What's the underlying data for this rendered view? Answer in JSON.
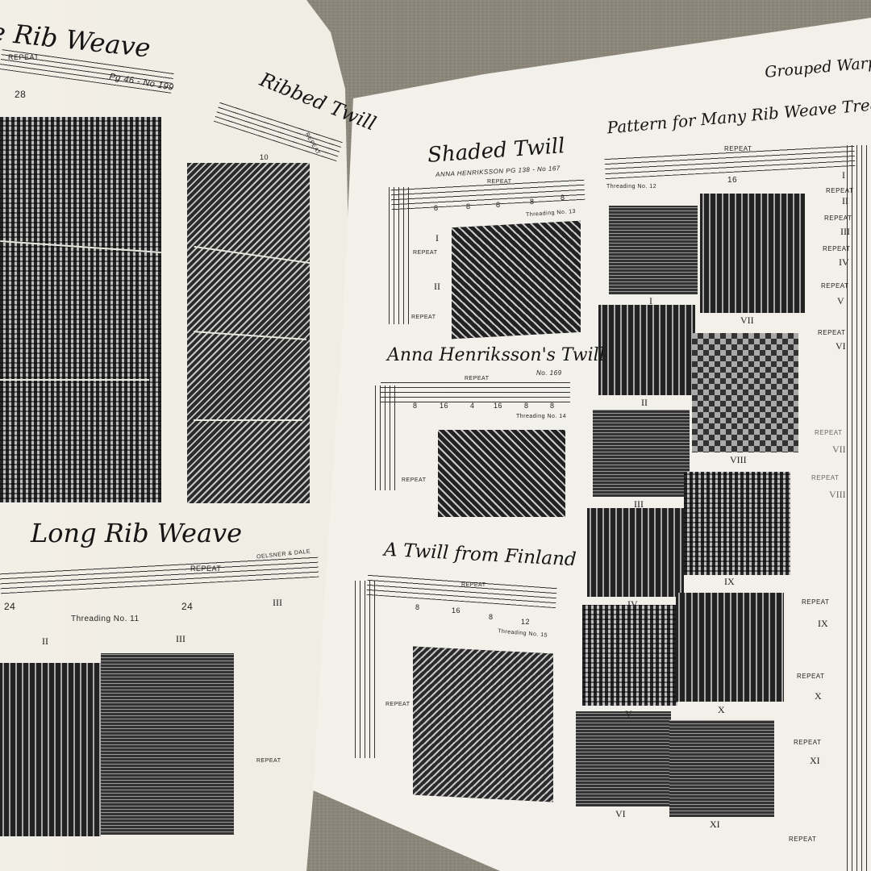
{
  "left_page": {
    "title_top": "e Rib Weave",
    "top_repeat": "REPEAT",
    "top_ref": "Pg 46 - No 199",
    "top_count": "28",
    "ribbed_title": "Ribbed Twill",
    "ribbed_count": "10",
    "ribbed_repeat": "REPEAT",
    "long_title": "Long Rib Weave",
    "long_ref": "OELSNER & DALE",
    "long_repeat": "REPEAT",
    "long_counts": [
      "24",
      "24"
    ],
    "long_threading": "Threading No. 11",
    "long_labels": [
      "II",
      "III",
      "III"
    ],
    "side_repeat": "REPEAT"
  },
  "right_page": {
    "header": "Grouped Warp T",
    "shaded": {
      "title": "Shaded Twill",
      "ref": "ANNA HENRIKSSON PG 138 - No 167",
      "repeat": "REPEAT",
      "counts": [
        "8",
        "8",
        "8",
        "8",
        "8"
      ],
      "threading": "Threading No. 13",
      "labels": [
        "I",
        "II"
      ],
      "side_repeat": [
        "REPEAT",
        "REPEAT"
      ]
    },
    "anna": {
      "title": "Anna Henriksson's Twill",
      "ref": "No. 169",
      "repeat": "REPEAT",
      "counts": [
        "8",
        "16",
        "4",
        "16",
        "8",
        "8"
      ],
      "threading": "Threading No. 14",
      "side_repeat": "REPEAT"
    },
    "finland": {
      "title": "A Twill from Finland",
      "repeat": "REPEAT",
      "counts": [
        "8",
        "16",
        "8",
        "12"
      ],
      "threading": "Threading No. 15",
      "side_repeat": "REPEAT"
    },
    "pattern": {
      "title": "Pattern for Many Rib Weave Treadlin",
      "repeat": "REPEAT",
      "count": "16",
      "threading": "Threading No. 12",
      "swatch_labels": [
        "I",
        "II",
        "III",
        "IV",
        "V",
        "VI",
        "VII",
        "VIII",
        "IX",
        "X",
        "XI"
      ]
    },
    "treadling": {
      "labels": [
        "I",
        "REPEAT",
        "II",
        "REPEAT",
        "III",
        "REPEAT",
        "IV",
        "REPEAT",
        "V",
        "REPEAT",
        "VI",
        "REPEAT",
        "VII",
        "REPEAT",
        "VIII",
        "REPEAT",
        "IX",
        "REPEAT",
        "X",
        "REPEAT",
        "XI",
        "REPEAT"
      ]
    }
  }
}
